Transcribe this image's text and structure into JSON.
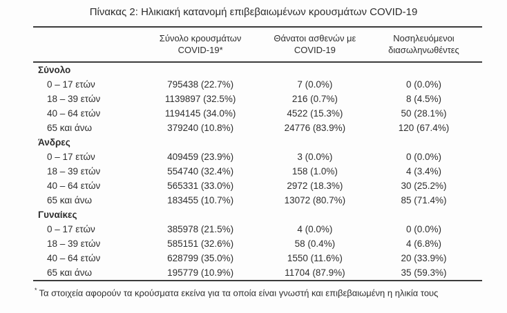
{
  "title": "Πίνακας 2: Ηλικιακή κατανομή επιβεβαιωμένων κρουσμάτων COVID-19",
  "table": {
    "headers": {
      "cases": "Σύνολο κρουσμάτων\nCOVID-19*",
      "deaths": "Θάνατοι ασθενών με\nCOVID-19",
      "intubated": "Νοσηλευόμενοι\nδιασωληνωθέντες"
    },
    "sections": [
      {
        "label": "Σύνολο",
        "rows": [
          {
            "label": "0 – 17 ετών",
            "cases": "795438 (22.7%)",
            "deaths": "7 (0.0%)",
            "intubated": "0 (0.0%)"
          },
          {
            "label": "18 – 39 ετών",
            "cases": "1139897 (32.5%)",
            "deaths": "216 (0.7%)",
            "intubated": "8 (4.5%)"
          },
          {
            "label": "40 – 64 ετών",
            "cases": "1194145 (34.0%)",
            "deaths": "4522 (15.3%)",
            "intubated": "50 (28.1%)"
          },
          {
            "label": "65 και άνω",
            "cases": "379240 (10.8%)",
            "deaths": "24776 (83.9%)",
            "intubated": "120 (67.4%)"
          }
        ]
      },
      {
        "label": "Άνδρες",
        "rows": [
          {
            "label": "0 – 17 ετών",
            "cases": "409459 (23.9%)",
            "deaths": "3 (0.0%)",
            "intubated": "0 (0.0%)"
          },
          {
            "label": "18 – 39 ετών",
            "cases": "554740 (32.4%)",
            "deaths": "158 (1.0%)",
            "intubated": "4 (3.4%)"
          },
          {
            "label": "40 – 64 ετών",
            "cases": "565331 (33.0%)",
            "deaths": "2972 (18.3%)",
            "intubated": "30 (25.2%)"
          },
          {
            "label": "65 και άνω",
            "cases": "183455 (10.7%)",
            "deaths": "13072 (80.7%)",
            "intubated": "85 (71.4%)"
          }
        ]
      },
      {
        "label": "Γυναίκες",
        "rows": [
          {
            "label": "0 – 17 ετών",
            "cases": "385978 (21.5%)",
            "deaths": "4 (0.0%)",
            "intubated": "0 (0.0%)"
          },
          {
            "label": "18 – 39 ετών",
            "cases": "585151 (32.6%)",
            "deaths": "58 (0.4%)",
            "intubated": "4 (6.8%)"
          },
          {
            "label": "40 – 64 ετών",
            "cases": "628799 (35.0%)",
            "deaths": "1550 (11.6%)",
            "intubated": "20 (33.9%)"
          },
          {
            "label": "65 και άνω",
            "cases": "195779 (10.9%)",
            "deaths": "11704 (87.9%)",
            "intubated": "35 (59.3%)"
          }
        ]
      }
    ]
  },
  "footnote": {
    "marker": "*",
    "text": "Τα στοιχεία αφορούν τα κρούσματα εκείνα για τα οποία είναι γνωστή και επιβεβαιωμένη η ηλικία τους"
  }
}
